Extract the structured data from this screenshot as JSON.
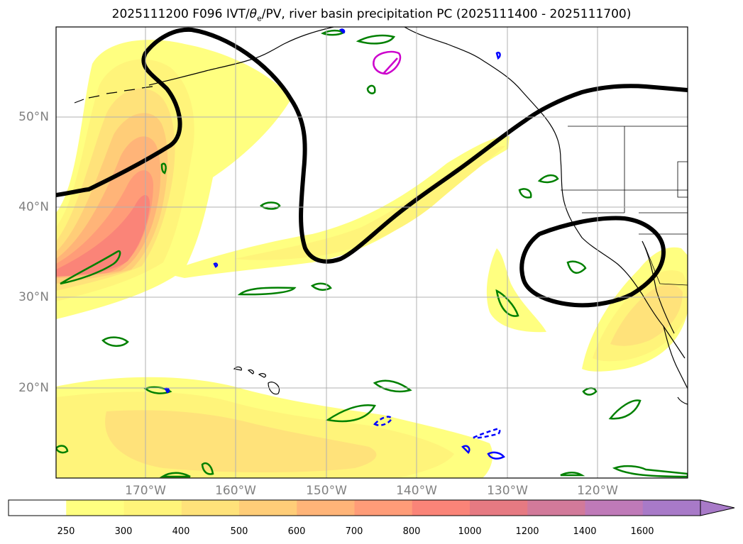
{
  "title": "2025111200 F096 IVT/θe/PV, river basin precipitation PC (2025111400 - 2025111700)",
  "title_parts": {
    "pre": "2025111200 F096 IVT/",
    "theta": "θ",
    "sub": "e",
    "post": "/PV, river basin precipitation PC (2025111400 - 2025111700)"
  },
  "lat_labels": [
    "50°N",
    "40°N",
    "30°N",
    "20°N"
  ],
  "lon_labels": [
    "170°W",
    "160°W",
    "150°W",
    "140°W",
    "130°W",
    "120°W"
  ],
  "colorbar": {
    "ticks": [
      "250",
      "300",
      "400",
      "500",
      "600",
      "700",
      "800",
      "1000",
      "1200",
      "1400",
      "1600"
    ],
    "colors": [
      "#ffffff",
      "#ffff80",
      "#fff47a",
      "#ffe27a",
      "#ffcd78",
      "#ffb478",
      "#ff9c78",
      "#fa8478",
      "#e67a82",
      "#d27a9a",
      "#bf7ab8",
      "#a87ac8"
    ],
    "extend": "max"
  },
  "colors": {
    "pv_contour": "#000000",
    "green_contour": "#008000",
    "blue_contour": "#0000ff",
    "magenta_contour": "#cc00cc",
    "coastline": "#000000",
    "gridline": "#b0b0b0"
  }
}
